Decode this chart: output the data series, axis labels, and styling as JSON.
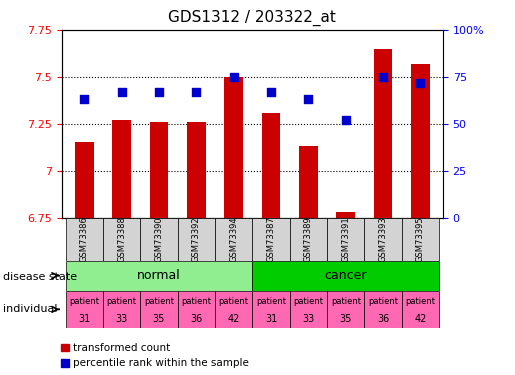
{
  "title": "GDS1312 / 203322_at",
  "samples": [
    "GSM73386",
    "GSM73388",
    "GSM73390",
    "GSM73392",
    "GSM73394",
    "GSM73387",
    "GSM73389",
    "GSM73391",
    "GSM73393",
    "GSM73395"
  ],
  "transformed_count": [
    7.15,
    7.27,
    7.26,
    7.26,
    7.5,
    7.31,
    7.13,
    6.78,
    7.65,
    7.57
  ],
  "percentile_rank": [
    63,
    67,
    67,
    67,
    75,
    67,
    63,
    52,
    75,
    72
  ],
  "disease_state": [
    "normal",
    "normal",
    "normal",
    "normal",
    "normal",
    "cancer",
    "cancer",
    "cancer",
    "cancer",
    "cancer"
  ],
  "individual": [
    31,
    33,
    35,
    36,
    42,
    31,
    33,
    35,
    36,
    42
  ],
  "ylim_left": [
    6.75,
    7.75
  ],
  "ylim_right": [
    0,
    100
  ],
  "yticks_left": [
    6.75,
    7.0,
    7.25,
    7.5,
    7.75
  ],
  "ytick_labels_left": [
    "6.75",
    "7",
    "7.25",
    "7.5",
    "7.75"
  ],
  "yticks_right": [
    0,
    25,
    50,
    75,
    100
  ],
  "ytick_labels_right": [
    "0",
    "25",
    "50",
    "75",
    "100%"
  ],
  "bar_color": "#cc0000",
  "dot_color": "#0000cc",
  "normal_bg": "#90ee90",
  "cancer_bg": "#00cc00",
  "individual_bg": "#ff69b4",
  "sample_bg": "#d3d3d3",
  "bar_width": 0.5,
  "dot_size": 40,
  "grid_color": "black",
  "grid_linewidth": 0.8
}
